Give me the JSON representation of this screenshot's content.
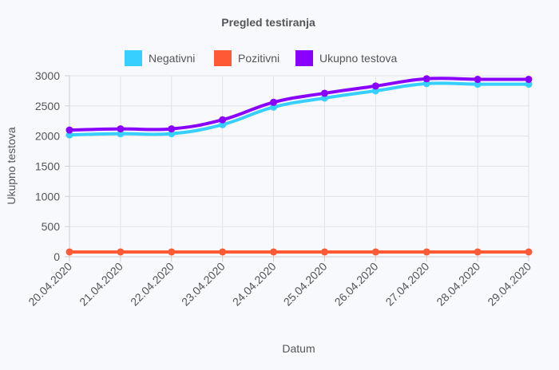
{
  "chart_data": {
    "type": "line",
    "title": "Pregled testiranja",
    "xlabel": "Datum",
    "ylabel": "Ukupno testova",
    "categories": [
      "20.04.2020",
      "21.04.2020",
      "22.04.2020",
      "23.04.2020",
      "24.04.2020",
      "25.04.2020",
      "26.04.2020",
      "27.04.2020",
      "28.04.2020",
      "29.04.2020"
    ],
    "ylim": [
      0,
      3000
    ],
    "yticks": [
      0,
      500,
      1000,
      1500,
      2000,
      2500,
      3000
    ],
    "grid": true,
    "legend_position": "top",
    "series": [
      {
        "name": "Negativni",
        "color": "#36cfff",
        "values": [
          2020,
          2040,
          2040,
          2190,
          2480,
          2630,
          2750,
          2870,
          2860,
          2860
        ]
      },
      {
        "name": "Pozitivni",
        "color": "#ff5a36",
        "values": [
          80,
          80,
          80,
          80,
          80,
          80,
          80,
          80,
          80,
          80
        ]
      },
      {
        "name": "Ukupno testova",
        "color": "#8a00ff",
        "values": [
          2100,
          2120,
          2120,
          2270,
          2560,
          2710,
          2830,
          2950,
          2940,
          2940
        ]
      }
    ]
  }
}
